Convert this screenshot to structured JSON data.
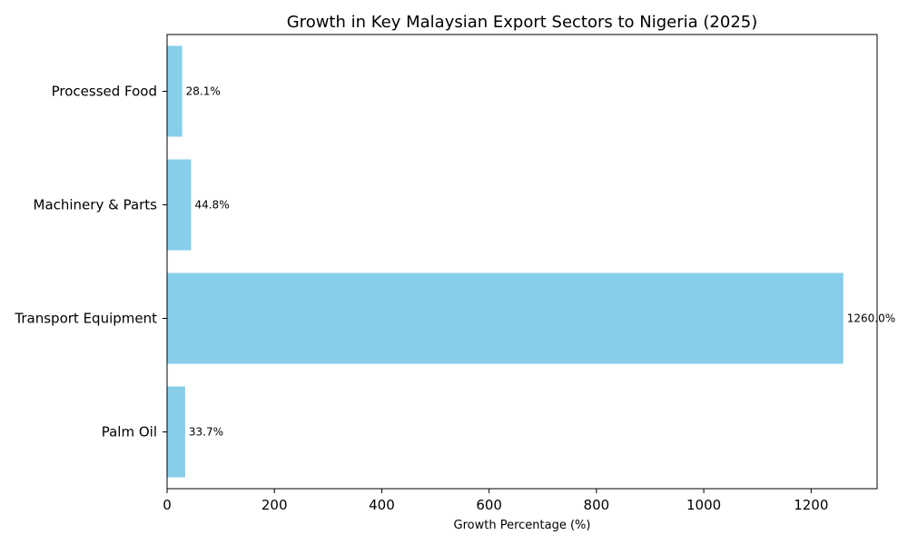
{
  "chart_data": {
    "type": "bar",
    "orientation": "horizontal",
    "title": "Growth in Key Malaysian Export Sectors to Nigeria (2025)",
    "xlabel": "Growth Percentage (%)",
    "ylabel": "",
    "categories": [
      "Palm Oil",
      "Transport Equipment",
      "Machinery & Parts",
      "Processed Food"
    ],
    "values": [
      33.7,
      1260.0,
      44.8,
      28.1
    ],
    "value_labels": [
      "33.7%",
      "1260.0%",
      "44.8%",
      "28.1%"
    ],
    "xlim": [
      0,
      1323
    ],
    "xticks": [
      0,
      200,
      400,
      600,
      800,
      1000,
      1200
    ],
    "bar_color": "#87ceeb",
    "grid": false,
    "legend": "none"
  }
}
